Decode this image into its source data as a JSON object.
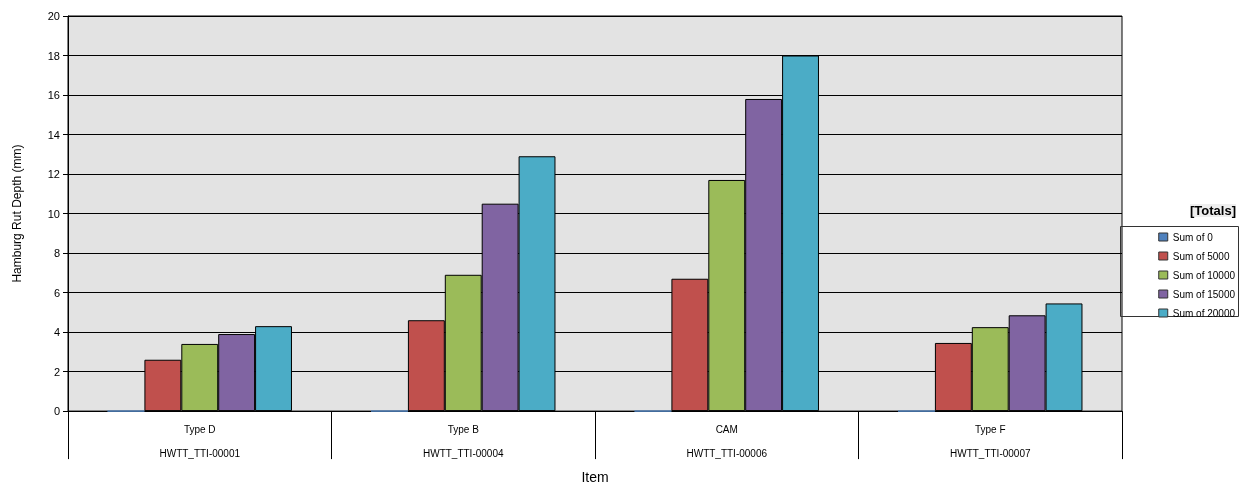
{
  "chart_data": {
    "type": "bar",
    "xlabel": "Item",
    "ylabel": "Hamburg Rut Depth (mm)",
    "legend_title": "[Totals]",
    "categories": [
      "Type D\nHWTT_TTI-00001",
      "Type B\nHWTT_TTI-00004",
      "CAM\nHWTT_TTI-00006",
      "Type F\nHWTT_TTI-00007"
    ],
    "series": [
      {
        "name": "Sum of 0",
        "color": "#4f81bd",
        "values": [
          0,
          0,
          0,
          0
        ]
      },
      {
        "name": "Sum of 5000",
        "color": "#c0504d",
        "values": [
          2.6,
          4.6,
          6.7,
          3.45
        ]
      },
      {
        "name": "Sum of 10000",
        "color": "#9bbb59",
        "values": [
          3.4,
          6.9,
          11.7,
          4.25
        ]
      },
      {
        "name": "Sum of 15000",
        "color": "#8064a2",
        "values": [
          3.9,
          10.5,
          15.8,
          4.85
        ]
      },
      {
        "name": "Sum of 20000",
        "color": "#4bacc6",
        "values": [
          4.3,
          12.9,
          18.0,
          5.45
        ]
      }
    ],
    "ylim": [
      0,
      20
    ],
    "yticks": [
      0,
      2,
      4,
      6,
      8,
      10,
      12,
      14,
      16,
      18,
      20
    ],
    "grid": "y",
    "legend": "right"
  }
}
